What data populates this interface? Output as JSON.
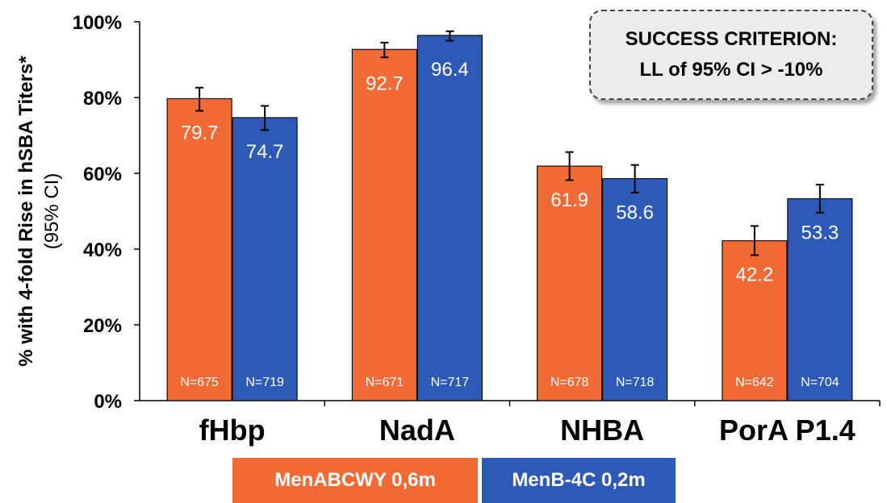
{
  "chart_data": {
    "type": "bar",
    "categories": [
      "fHbp",
      "NadA",
      "NHBA",
      "PorA P1.4"
    ],
    "series": [
      {
        "name": "MenABCWY 0,6m",
        "color": "#f26a35",
        "values": [
          79.7,
          92.7,
          61.9,
          42.2
        ],
        "ci_low": [
          76.5,
          90.6,
          58.2,
          38.4
        ],
        "ci_high": [
          82.6,
          94.5,
          65.6,
          46.1
        ],
        "n_labels": [
          "N=675",
          "N=671",
          "N=678",
          "N=642"
        ]
      },
      {
        "name": "MenB-4C 0,2m",
        "color": "#2d5ab7",
        "values": [
          74.7,
          96.4,
          58.6,
          53.3
        ],
        "ci_low": [
          71.4,
          95.0,
          54.9,
          49.6
        ],
        "ci_high": [
          77.8,
          97.5,
          62.2,
          57.0
        ],
        "n_labels": [
          "N=719",
          "N=717",
          "N=718",
          "N=704"
        ]
      }
    ],
    "ylim": [
      0,
      100
    ],
    "yticks": [
      "0%",
      "20%",
      "40%",
      "60%",
      "80%",
      "100%"
    ],
    "ylabel": "% with 4-fold Rise in hSBA Titers*",
    "ylabel_sub": "(95% CI)",
    "legend_position": "bottom"
  },
  "annotation": {
    "line1": "SUCCESS CRITERION:",
    "line2": "LL of 95% CI > -10%"
  },
  "legend": {
    "a_label": "MenABCWY 0,6m",
    "b_label": "MenB-4C 0,2m"
  }
}
